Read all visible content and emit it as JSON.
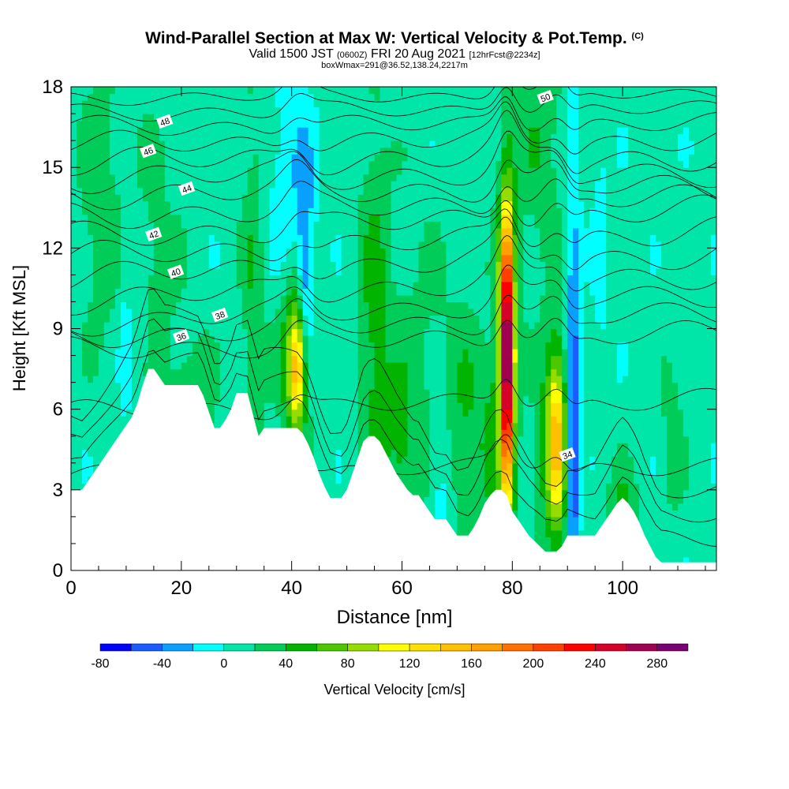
{
  "title": {
    "main": "Wind-Parallel Section at Max W: Vertical Velocity & Pot.Temp.",
    "copyright": "(C)",
    "valid_prefix": "Valid 1500 JST",
    "valid_utc": "(0600Z)",
    "valid_date": "FRI 20 Aug 2021",
    "forecast": "[12hrFcst@2234z]",
    "boxinfo": "boxWmax=291@36.52,138.24,2217m"
  },
  "chart_data": {
    "type": "heatmap",
    "xlabel": "Distance [nm]",
    "ylabel": "Height [Kft MSL]",
    "xlim": [
      0,
      117
    ],
    "ylim": [
      0,
      18
    ],
    "x_ticks": [
      0,
      20,
      40,
      60,
      80,
      100
    ],
    "y_ticks": [
      0,
      3,
      6,
      9,
      12,
      15,
      18
    ],
    "grid": false,
    "terrain": [
      [
        0,
        3
      ],
      [
        1,
        3
      ],
      [
        2,
        3
      ],
      [
        3,
        3.3
      ],
      [
        4,
        3.6
      ],
      [
        5,
        3.9
      ],
      [
        6,
        4.2
      ],
      [
        7,
        4.5
      ],
      [
        8,
        4.8
      ],
      [
        9,
        5.1
      ],
      [
        10,
        5.4
      ],
      [
        11,
        5.7
      ],
      [
        12,
        6.2
      ],
      [
        13,
        6.9
      ],
      [
        14,
        7.5
      ],
      [
        15,
        7.5
      ],
      [
        16,
        7.2
      ],
      [
        17,
        6.9
      ],
      [
        20,
        6.9
      ],
      [
        23,
        6.9
      ],
      [
        24,
        6.5
      ],
      [
        25,
        5.9
      ],
      [
        26,
        5.3
      ],
      [
        27,
        5.3
      ],
      [
        28,
        5.6
      ],
      [
        29,
        6
      ],
      [
        30,
        6.6
      ],
      [
        31,
        6.6
      ],
      [
        32,
        6.6
      ],
      [
        33,
        5.8
      ],
      [
        34,
        5
      ],
      [
        35,
        5.3
      ],
      [
        37,
        5.3
      ],
      [
        39,
        5.3
      ],
      [
        40,
        5.3
      ],
      [
        41,
        5.3
      ],
      [
        42,
        5.1
      ],
      [
        43,
        4.7
      ],
      [
        44,
        4.2
      ],
      [
        45,
        3.6
      ],
      [
        46,
        3.1
      ],
      [
        47,
        2.7
      ],
      [
        48,
        2.7
      ],
      [
        49,
        2.7
      ],
      [
        50,
        3
      ],
      [
        51,
        3.6
      ],
      [
        52,
        4.2
      ],
      [
        53,
        4.8
      ],
      [
        54,
        5
      ],
      [
        55,
        5
      ],
      [
        56,
        4.8
      ],
      [
        57,
        4.4
      ],
      [
        58,
        4
      ],
      [
        59,
        3.6
      ],
      [
        60,
        3.3
      ],
      [
        61,
        3
      ],
      [
        62,
        2.8
      ],
      [
        63,
        2.8
      ],
      [
        64,
        2.5
      ],
      [
        65,
        2.2
      ],
      [
        66,
        1.9
      ],
      [
        67,
        1.9
      ],
      [
        68,
        1.9
      ],
      [
        69,
        1.6
      ],
      [
        70,
        1.3
      ],
      [
        71,
        1.3
      ],
      [
        72,
        1.3
      ],
      [
        73,
        1.6
      ],
      [
        74,
        2
      ],
      [
        75,
        2.5
      ],
      [
        76,
        2.8
      ],
      [
        77,
        3
      ],
      [
        78,
        3
      ],
      [
        79,
        2.8
      ],
      [
        80,
        2.2
      ],
      [
        81,
        1.9
      ],
      [
        82,
        1.6
      ],
      [
        83,
        1.3
      ],
      [
        84,
        1.1
      ],
      [
        85,
        0.9
      ],
      [
        86,
        0.7
      ],
      [
        87,
        0.7
      ],
      [
        88,
        0.7
      ],
      [
        89,
        0.9
      ],
      [
        90,
        1.3
      ],
      [
        91,
        1.3
      ],
      [
        92,
        1.3
      ],
      [
        93,
        1.3
      ],
      [
        94,
        1.3
      ],
      [
        95,
        1.3
      ],
      [
        96,
        1.6
      ],
      [
        97,
        1.9
      ],
      [
        98,
        2.2
      ],
      [
        99,
        2.5
      ],
      [
        100,
        2.7
      ],
      [
        101,
        2.5
      ],
      [
        102,
        2.2
      ],
      [
        103,
        1.8
      ],
      [
        104,
        1.3
      ],
      [
        105,
        0.9
      ],
      [
        106,
        0.5
      ],
      [
        107,
        0.3
      ],
      [
        110,
        0.3
      ],
      [
        113,
        0.3
      ],
      [
        116,
        0.3
      ],
      [
        117,
        0.3
      ]
    ],
    "vertical_velocity_features": [
      {
        "x": 41,
        "y": 7.5,
        "sx": 1.2,
        "sy": 1.6,
        "value": 120
      },
      {
        "x": 40.5,
        "y": 8.5,
        "sx": 2.5,
        "sy": 3,
        "value": 40
      },
      {
        "x": 79,
        "y": 8,
        "sx": 0.8,
        "sy": 3.5,
        "value": 220
      },
      {
        "x": 79,
        "y": 8.2,
        "sx": 1.4,
        "sy": 4.5,
        "value": 90
      },
      {
        "x": 88,
        "y": 5,
        "sx": 1.3,
        "sy": 2.2,
        "value": 100
      },
      {
        "x": 88,
        "y": 4.5,
        "sx": 2.5,
        "sy": 3.5,
        "value": 45
      },
      {
        "x": 91,
        "y": 4.5,
        "sx": 0.9,
        "sy": 3.5,
        "value": -80
      },
      {
        "x": 91,
        "y": 11,
        "sx": 1,
        "sy": 6,
        "value": -30
      },
      {
        "x": 42.5,
        "y": 10.5,
        "sx": 1,
        "sy": 3,
        "value": -55
      },
      {
        "x": 40,
        "y": 14,
        "sx": 3,
        "sy": 3,
        "value": -30
      },
      {
        "x": 55,
        "y": 9,
        "sx": 2,
        "sy": 6,
        "value": 35
      },
      {
        "x": 33,
        "y": 10,
        "sx": 1.5,
        "sy": 6,
        "value": 30
      },
      {
        "x": 14,
        "y": 11,
        "sx": 4,
        "sy": 4,
        "value": 22
      },
      {
        "x": 10,
        "y": 9,
        "sx": 1,
        "sy": 3,
        "value": -28
      },
      {
        "x": 13,
        "y": 10,
        "sx": 0.7,
        "sy": 2.5,
        "value": -25
      },
      {
        "x": 5,
        "y": 14,
        "sx": 2.5,
        "sy": 4,
        "value": 25
      },
      {
        "x": 22,
        "y": 5.8,
        "sx": 3,
        "sy": 2,
        "value": 30
      },
      {
        "x": 60,
        "y": 4,
        "sx": 2,
        "sy": 2,
        "value": 30
      },
      {
        "x": 67,
        "y": 3.5,
        "sx": 1.2,
        "sy": 2,
        "value": -28
      },
      {
        "x": 72,
        "y": 5,
        "sx": 2.5,
        "sy": 3,
        "value": 28
      },
      {
        "x": 85,
        "y": 16,
        "sx": 3,
        "sy": 3,
        "value": 28
      },
      {
        "x": 63,
        "y": 7.5,
        "sx": 6,
        "sy": 4,
        "value": 18
      },
      {
        "x": 100,
        "y": 2.2,
        "sx": 2,
        "sy": 1.2,
        "value": 35
      },
      {
        "x": 109,
        "y": 5,
        "sx": 1.5,
        "sy": 2.5,
        "value": 22
      },
      {
        "x": 96,
        "y": 12,
        "sx": 1,
        "sy": 3,
        "value": -20
      },
      {
        "x": 76,
        "y": 4.5,
        "sx": 1.2,
        "sy": 2.5,
        "value": 25
      }
    ],
    "theta_contours": [
      {
        "label": "34",
        "y0": 3.6,
        "y1": 3.9,
        "amp": 0.25,
        "label_x": 90,
        "label_y": 4.3
      },
      {
        "label": "36",
        "y0": 8.2,
        "y1": 8.8,
        "amp": 0.35,
        "label_x": 20,
        "label_y": 8.7
      },
      {
        "label": "38",
        "y0": 9.2,
        "y1": 10.3,
        "amp": 0.35,
        "label_x": 27,
        "label_y": 9.5
      },
      {
        "label": "40",
        "y0": 10.9,
        "y1": 11.8,
        "amp": 0.4,
        "label_x": 19,
        "label_y": 11.1
      },
      {
        "label": "42",
        "y0": 12.4,
        "y1": 13.4,
        "amp": 0.4,
        "label_x": 15,
        "label_y": 12.5
      },
      {
        "label": "44",
        "y0": 14,
        "y1": 14.3,
        "amp": 0.4,
        "label_x": 21,
        "label_y": 14.2
      },
      {
        "label": "46",
        "y0": 15.2,
        "y1": 15.4,
        "amp": 0.4,
        "label_x": 14,
        "label_y": 15.6
      },
      {
        "label": "48",
        "y0": 16.5,
        "y1": 16.6,
        "amp": 0.3,
        "label_x": 17,
        "label_y": 16.7
      },
      {
        "label": "50",
        "y0": 17.6,
        "y1": 17.7,
        "amp": 0.2,
        "label_x": 86,
        "label_y": 17.6
      }
    ],
    "colorbar": {
      "label": "Vertical Velocity [cm/s]",
      "levels": [
        -80,
        -60,
        -40,
        -20,
        0,
        20,
        40,
        60,
        80,
        100,
        120,
        140,
        160,
        180,
        200,
        220,
        240,
        260,
        280,
        300
      ],
      "tick_labels": [
        "-80",
        "-40",
        "0",
        "40",
        "80",
        "120",
        "160",
        "200",
        "240",
        "280"
      ],
      "colors": [
        "#0000ff",
        "#1a5cff",
        "#0aa0ff",
        "#00ffff",
        "#00e6a8",
        "#00cc5a",
        "#00b400",
        "#4cc800",
        "#96dc00",
        "#ffff00",
        "#ffe000",
        "#ffc000",
        "#ffa000",
        "#ff7000",
        "#ff4000",
        "#ff0000",
        "#d40028",
        "#a00050",
        "#780070"
      ]
    }
  }
}
